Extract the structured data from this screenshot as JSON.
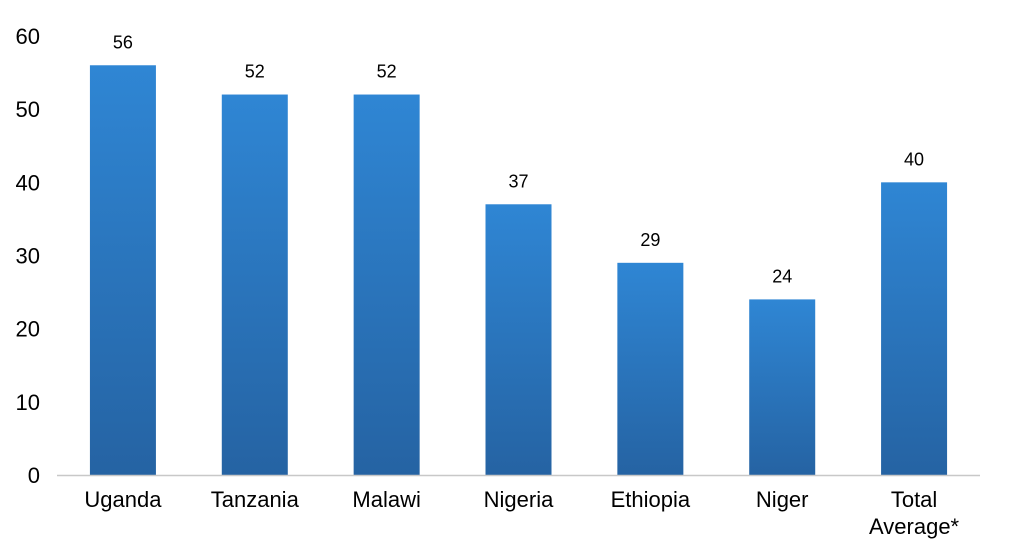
{
  "chart_data": {
    "type": "bar",
    "title": "",
    "xlabel": "",
    "ylabel": "",
    "categories": [
      "Uganda",
      "Tanzania",
      "Malawi",
      "Nigeria",
      "Ethiopia",
      "Niger",
      "Total Average*"
    ],
    "category_lines": [
      [
        "Uganda"
      ],
      [
        "Tanzania"
      ],
      [
        "Malawi"
      ],
      [
        "Nigeria"
      ],
      [
        "Ethiopia"
      ],
      [
        "Niger"
      ],
      [
        "Total",
        "Average*"
      ]
    ],
    "values": [
      56,
      52,
      52,
      37,
      29,
      24,
      40
    ],
    "data_labels": [
      "56",
      "52",
      "52",
      "37",
      "29",
      "24",
      "40"
    ],
    "ylim": [
      0,
      60
    ],
    "yticks": [
      0,
      10,
      20,
      30,
      40,
      50,
      60
    ],
    "ytick_labels": [
      "0",
      "10",
      "20",
      "30",
      "40",
      "50",
      "60"
    ],
    "grid": false,
    "legend": "none",
    "bar_color_top": "#2f86d4",
    "bar_color_bottom": "#2563a3",
    "axis_color": "#c8c8c8"
  }
}
